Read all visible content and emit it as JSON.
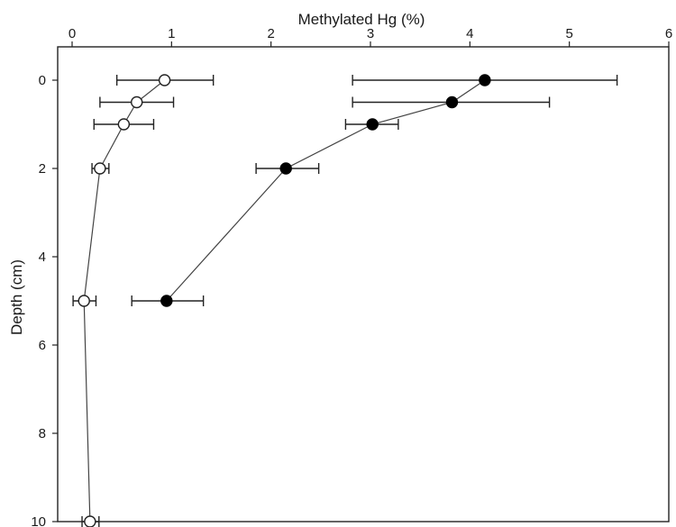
{
  "chart_data": {
    "type": "scatter",
    "xlabel": "Methylated Hg (%)",
    "ylabel": "Depth (cm)",
    "xlim": [
      0,
      6
    ],
    "ylim": [
      10,
      0
    ],
    "x_axis_position": "top",
    "y_axis_reversed": true,
    "grid": false,
    "legend": "none",
    "xticks": [
      0,
      1,
      2,
      3,
      4,
      5,
      6
    ],
    "yticks": [
      0,
      2,
      4,
      6,
      8,
      10
    ],
    "series": [
      {
        "marker": "open-circle",
        "color": "#222222",
        "points": [
          {
            "depth": 0.0,
            "value": 0.93,
            "err_lo": 0.45,
            "err_hi": 1.42
          },
          {
            "depth": 0.5,
            "value": 0.65,
            "err_lo": 0.28,
            "err_hi": 1.02
          },
          {
            "depth": 1.0,
            "value": 0.52,
            "err_lo": 0.22,
            "err_hi": 0.82
          },
          {
            "depth": 2.0,
            "value": 0.28,
            "err_lo": 0.2,
            "err_hi": 0.37
          },
          {
            "depth": 5.0,
            "value": 0.12,
            "err_lo": 0.01,
            "err_hi": 0.24
          },
          {
            "depth": 10.0,
            "value": 0.18,
            "err_lo": 0.1,
            "err_hi": 0.27
          }
        ]
      },
      {
        "marker": "filled-circle",
        "color": "#000000",
        "points": [
          {
            "depth": 0.0,
            "value": 4.15,
            "err_lo": 2.82,
            "err_hi": 5.48
          },
          {
            "depth": 0.5,
            "value": 3.82,
            "err_lo": 2.82,
            "err_hi": 4.8
          },
          {
            "depth": 1.0,
            "value": 3.02,
            "err_lo": 2.75,
            "err_hi": 3.28
          },
          {
            "depth": 2.0,
            "value": 2.15,
            "err_lo": 1.85,
            "err_hi": 2.48
          },
          {
            "depth": 5.0,
            "value": 0.95,
            "err_lo": 0.6,
            "err_hi": 1.32
          }
        ]
      }
    ]
  }
}
